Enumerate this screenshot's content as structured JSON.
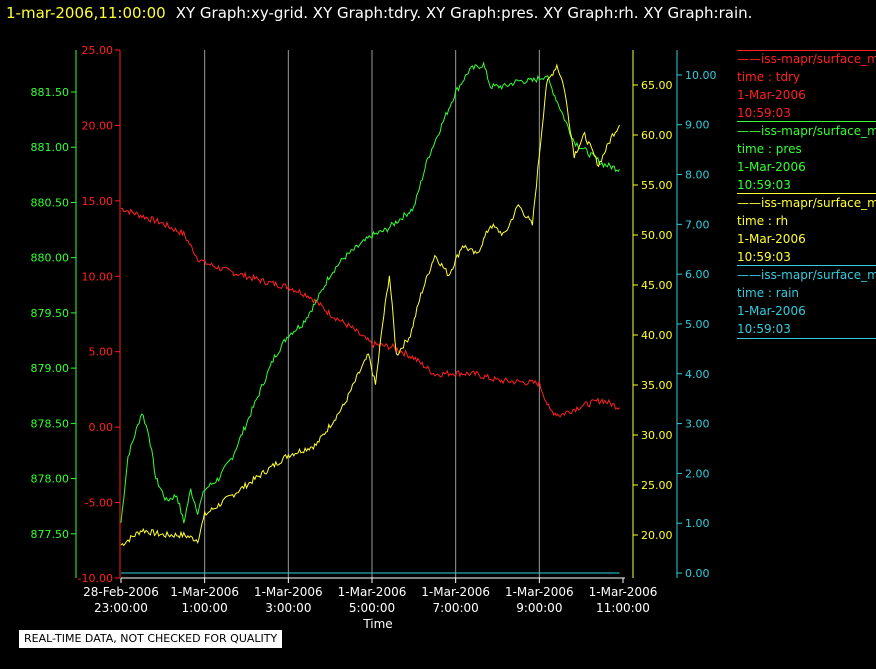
{
  "header": {
    "time": "1-mar-2006,11:00:00",
    "title": "XY Graph:xy-grid.  XY Graph:tdry.  XY Graph:pres.  XY Graph:rh.  XY Graph:rain."
  },
  "disclaimer": "REAL-TIME DATA, NOT CHECKED FOR QUALITY",
  "legend": [
    {
      "name_line": "——iss-mapr/surface_m",
      "field_line": "time : tdry",
      "date_line": "1-Mar-2006",
      "time_line": "10:59:03",
      "color": "#ff2020"
    },
    {
      "name_line": "——iss-mapr/surface_m",
      "field_line": "time : pres",
      "date_line": "1-Mar-2006",
      "time_line": "10:59:03",
      "color": "#33ff33"
    },
    {
      "name_line": "——iss-mapr/surface_m",
      "field_line": "time : rh",
      "date_line": "1-Mar-2006",
      "time_line": "10:59:03",
      "color": "#ffff33"
    },
    {
      "name_line": "——iss-mapr/surface_m",
      "field_line": "time : rain",
      "date_line": "1-Mar-2006",
      "time_line": "10:59:03",
      "color": "#33ccdd"
    }
  ],
  "chart_data": {
    "type": "line",
    "xlabel": "Time",
    "x_ticks": [
      {
        "time": "28-Feb-2006 23:00",
        "line1": "28-Feb-2006",
        "line2": "23:00:00"
      },
      {
        "time": "1-Mar-2006 01:00",
        "line1": "1-Mar-2006",
        "line2": "1:00:00"
      },
      {
        "time": "1-Mar-2006 03:00",
        "line1": "1-Mar-2006",
        "line2": "3:00:00"
      },
      {
        "time": "1-Mar-2006 05:00",
        "line1": "1-Mar-2006",
        "line2": "5:00:00"
      },
      {
        "time": "1-Mar-2006 07:00",
        "line1": "1-Mar-2006",
        "line2": "7:00:00"
      },
      {
        "time": "1-Mar-2006 09:00",
        "line1": "1-Mar-2006",
        "line2": "9:00:00"
      },
      {
        "time": "1-Mar-2006 11:00",
        "line1": "1-Mar-2006",
        "line2": "11:00:00"
      }
    ],
    "x_range": [
      "28-Feb-2006 23:00",
      "1-Mar-2006 11:00"
    ],
    "grid": "vertical",
    "axes": {
      "tdry": {
        "color": "#ff2020",
        "ticks": [
          "25.00",
          "20.00",
          "15.00",
          "10.00",
          "5.00",
          "0.00",
          "-5.00",
          "-10.00"
        ],
        "range": [
          -10,
          25
        ]
      },
      "pres": {
        "color": "#33ff33",
        "ticks": [
          "881.50",
          "881.00",
          "880.50",
          "880.00",
          "879.50",
          "879.00",
          "878.50",
          "878.00",
          "877.50"
        ],
        "range": [
          877.1,
          881.88
        ]
      },
      "rh": {
        "color": "#ffff33",
        "ticks": [
          "65.00",
          "60.00",
          "55.00",
          "50.00",
          "45.00",
          "40.00",
          "35.00",
          "30.00",
          "25.00",
          "20.00"
        ],
        "range": [
          15.7,
          68.5
        ]
      },
      "rain": {
        "color": "#33ccdd",
        "ticks": [
          "10.00",
          "9.00",
          "8.00",
          "7.00",
          "6.00",
          "5.00",
          "4.00",
          "3.00",
          "2.00",
          "1.00",
          "0.00"
        ],
        "range": [
          -0.1,
          10.5
        ]
      }
    },
    "series": [
      {
        "name": "iss-mapr/surface_m time : tdry",
        "axis": "tdry",
        "color": "#ff2020",
        "x": [
          "23:00",
          "23:30",
          "00:00",
          "00:30",
          "00:50",
          "01:00",
          "01:30",
          "02:00",
          "02:30",
          "03:00",
          "03:30",
          "04:00",
          "04:30",
          "05:00",
          "05:30",
          "06:00",
          "06:30",
          "07:00",
          "07:30",
          "08:00",
          "08:30",
          "09:00",
          "09:15",
          "09:30",
          "10:00",
          "10:30",
          "10:55"
        ],
        "values": [
          14.5,
          14.0,
          13.5,
          12.8,
          11.2,
          10.9,
          10.4,
          10.0,
          9.6,
          9.3,
          8.7,
          7.5,
          6.6,
          5.5,
          5.3,
          4.6,
          3.5,
          3.6,
          3.5,
          3.1,
          3.0,
          2.9,
          1.1,
          0.8,
          1.4,
          1.8,
          1.3
        ]
      },
      {
        "name": "iss-mapr/surface_m time : pres",
        "axis": "pres",
        "color": "#33ff33",
        "x": [
          "23:00",
          "23:10",
          "23:30",
          "23:40",
          "23:50",
          "00:05",
          "00:20",
          "00:30",
          "00:40",
          "00:50",
          "01:00",
          "01:20",
          "01:40",
          "02:00",
          "02:20",
          "02:40",
          "03:00",
          "03:20",
          "03:40",
          "04:00",
          "04:20",
          "04:40",
          "05:00",
          "05:20",
          "05:40",
          "06:00",
          "06:20",
          "06:40",
          "07:00",
          "07:20",
          "07:40",
          "07:50",
          "08:10",
          "08:30",
          "08:50",
          "09:10",
          "09:30",
          "09:50",
          "10:10",
          "10:30",
          "10:55"
        ],
        "values": [
          877.6,
          878.2,
          878.6,
          878.4,
          878.0,
          877.8,
          877.85,
          877.6,
          877.9,
          877.7,
          877.9,
          878.0,
          878.2,
          878.5,
          878.8,
          879.1,
          879.3,
          879.4,
          879.6,
          879.85,
          880.0,
          880.1,
          880.2,
          880.25,
          880.35,
          880.45,
          880.9,
          881.2,
          881.5,
          881.7,
          881.75,
          881.55,
          881.55,
          881.6,
          881.6,
          881.65,
          881.35,
          881.05,
          880.95,
          880.85,
          880.8
        ]
      },
      {
        "name": "iss-mapr/surface_m time : rh",
        "axis": "rh",
        "color": "#ffff33",
        "x": [
          "23:00",
          "23:30",
          "00:00",
          "00:30",
          "00:50",
          "01:00",
          "01:20",
          "01:40",
          "02:00",
          "02:20",
          "02:40",
          "03:00",
          "03:20",
          "03:40",
          "04:00",
          "04:20",
          "04:40",
          "04:55",
          "05:05",
          "05:15",
          "05:25",
          "05:35",
          "05:55",
          "06:10",
          "06:30",
          "06:50",
          "07:10",
          "07:30",
          "07:50",
          "08:10",
          "08:30",
          "08:50",
          "09:10",
          "09:25",
          "09:35",
          "09:50",
          "10:05",
          "10:25",
          "10:45",
          "10:55"
        ],
        "values": [
          19.0,
          20.5,
          20.0,
          20.0,
          19.5,
          22.0,
          23.0,
          24.0,
          25.0,
          26.0,
          27.0,
          28.0,
          28.5,
          29.0,
          31.0,
          33.0,
          36.0,
          38.0,
          35.0,
          41.0,
          46.0,
          38.0,
          40.0,
          44.0,
          48.0,
          46.0,
          49.0,
          48.0,
          51.0,
          50.0,
          53.0,
          51.0,
          65.0,
          67.0,
          65.0,
          58.0,
          60.0,
          57.0,
          60.0,
          61.0
        ]
      },
      {
        "name": "iss-mapr/surface_m time : rain",
        "axis": "rain",
        "color": "#33ccdd",
        "x": [
          "23:00",
          "10:55"
        ],
        "values": [
          0.0,
          0.0
        ]
      }
    ]
  }
}
